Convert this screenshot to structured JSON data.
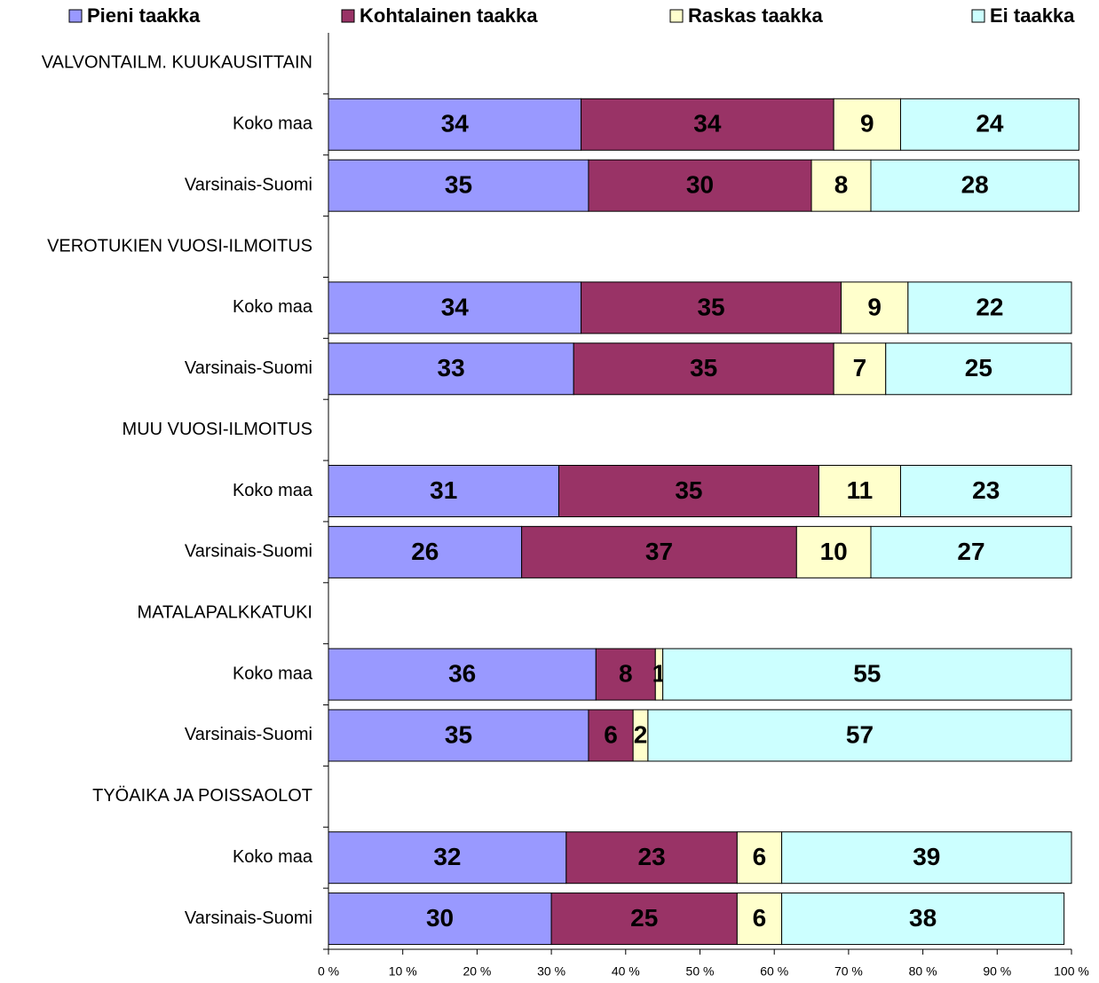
{
  "chart_data": {
    "type": "stacked_barh",
    "categories": [
      "VALVONTAILM. KUUKAUSITTAIN",
      "Koko maa",
      "Varsinais-Suomi",
      "VEROTUKIEN VUOSI-ILMOITUS",
      "Koko maa",
      "Varsinais-Suomi",
      "MUU VUOSI-ILMOITUS",
      "Koko maa",
      "Varsinais-Suomi",
      "MATALAPALKKATUKI",
      "Koko maa",
      "Varsinais-Suomi",
      "TYÖAIKA JA POISSAOLOT",
      "Koko maa",
      "Varsinais-Suomi"
    ],
    "series": [
      {
        "name": "Pieni taakka",
        "color": "#9999ff",
        "values": [
          null,
          34,
          35,
          null,
          34,
          33,
          null,
          31,
          26,
          null,
          36,
          35,
          null,
          32,
          30
        ]
      },
      {
        "name": "Kohtalainen taakka",
        "color": "#993366",
        "values": [
          null,
          34,
          30,
          null,
          35,
          35,
          null,
          35,
          37,
          null,
          8,
          6,
          null,
          23,
          25
        ]
      },
      {
        "name": "Raskas taakka",
        "color": "#ffffcc",
        "values": [
          null,
          9,
          8,
          null,
          9,
          7,
          null,
          11,
          10,
          null,
          1,
          2,
          null,
          6,
          6
        ]
      },
      {
        "name": "Ei taakka",
        "color": "#ccffff",
        "values": [
          null,
          24,
          28,
          null,
          22,
          25,
          null,
          23,
          27,
          null,
          55,
          57,
          null,
          39,
          38
        ]
      }
    ],
    "xlim": [
      0,
      100
    ],
    "xticks": [
      {
        "value": 0,
        "label": "0 %"
      },
      {
        "value": 10,
        "label": "10 %"
      },
      {
        "value": 20,
        "label": "20 %"
      },
      {
        "value": 30,
        "label": "30 %"
      },
      {
        "value": 40,
        "label": "40 %"
      },
      {
        "value": 50,
        "label": "50 %"
      },
      {
        "value": 60,
        "label": "60 %"
      },
      {
        "value": 70,
        "label": "70 %"
      },
      {
        "value": 80,
        "label": "80 %"
      },
      {
        "value": 90,
        "label": "90 %"
      },
      {
        "value": 100,
        "label": "100 %"
      }
    ],
    "legend": "top"
  }
}
